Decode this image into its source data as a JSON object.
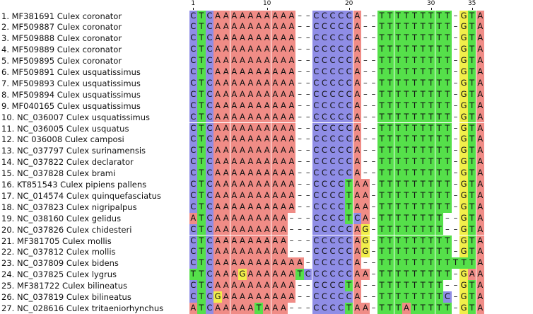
{
  "ruler_ticks": [
    {
      "pos": 1,
      "label": "1"
    },
    {
      "pos": 10,
      "label": "10"
    },
    {
      "pos": 20,
      "label": "20"
    },
    {
      "pos": 30,
      "label": "30"
    },
    {
      "pos": 35,
      "label": "35"
    }
  ],
  "nuc_colors": {
    "A": "#f08c86",
    "C": "#8f8de6",
    "T": "#55e04a",
    "G": "#f1ee4a"
  },
  "rows": [
    {
      "label": "1. MF381691 Culex coronator",
      "seq": "CTCAAAAAAAAAA--CCCCCA--TTTTTTTTT-GTA"
    },
    {
      "label": "2. MF509887 Culex coronator",
      "seq": "CTCAAAAAAAAAA--CCCCCA--TTTTTTTTT-GTA"
    },
    {
      "label": "3. MF509888 Culex coronator",
      "seq": "CTCAAAAAAAAAA--CCCCCA--TTTTTTTTT-GTA"
    },
    {
      "label": "4. MF509889 Culex coronator",
      "seq": "CTCAAAAAAAAAA--CCCCCA--TTTTTTTTT-GTA"
    },
    {
      "label": "5. MF509895 Culex coronator",
      "seq": "CTCAAAAAAAAAA--CCCCCA--TTTTTTTTT-GTA"
    },
    {
      "label": "6. MF509891 Culex usquatissimus",
      "seq": "CTCAAAAAAAAAA--CCCCCA--TTTTTTTTT-GTA"
    },
    {
      "label": "7. MF509893 Culex usquatissimus",
      "seq": "CTCAAAAAAAAAA--CCCCCA--TTTTTTTTT-GTA"
    },
    {
      "label": "8. MF509894 Culex usquatissimus",
      "seq": "CTCAAAAAAAAAA--CCCCCA--TTTTTTTTT-GTA"
    },
    {
      "label": "9. MF040165 Culex usquatissimus",
      "seq": "CTCAAAAAAAAAA--CCCCCA--TTTTTTTTT-GTA"
    },
    {
      "label": "10. NC_036007 Culex usquatissimus",
      "seq": "CTCAAAAAAAAAA--CCCCCA--TTTTTTTTT-GTA"
    },
    {
      "label": "11. NC_036005 Culex usquatus",
      "seq": "CTCAAAAAAAAAA--CCCCCA--TTTTTTTTT-GTA"
    },
    {
      "label": "12. NC 036008 Culex camposi",
      "seq": "CTCAAAAAAAAAA--CCCCCA--TTTTTTTTT-GTA"
    },
    {
      "label": "13. NC_037797 Culex surinamensis",
      "seq": "CTCAAAAAAAAAA--CCCCCA--TTTTTTTTT-GTA"
    },
    {
      "label": "14. NC_037822 Culex declarator",
      "seq": "CTCAAAAAAAAAA--CCCCCA--TTTTTTTTT-GTA"
    },
    {
      "label": "15. NC_037828 Culex brami",
      "seq": "CTCAAAAAAAAAA--CCCCCA--TTTTTTTTT-GTA"
    },
    {
      "label": "16. KT851543 Culex pipiens pallens",
      "seq": "CTCAAAAAAAAAA--CCCCTAA-TTTTTTTTT-GTA"
    },
    {
      "label": "17. NC_014574 Culex quinquefasciatus",
      "seq": "CTCAAAAAAAAAA--CCCCTAA-TTTTTTTTT-GTA"
    },
    {
      "label": "18. NC_037823 Culex nigripalpus",
      "seq": "CTCAAAAAAAAAA--CCCCTAA-TTTTTTTTT-GTA"
    },
    {
      "label": "19. NC_038160 Culex gelidus",
      "seq": "ATCAAAAAAAAA---CCCCTCA-TTTTTTTT--GTA"
    },
    {
      "label": "20. NC_037826 Culex chidesteri",
      "seq": "CTCAAAAAAAAA---CCCCCAG-TTTTTTTT--GTA"
    },
    {
      "label": "21. MF381705 Culex mollis",
      "seq": "CTCAAAAAAAAA---CCCCCAG-TTTTTTTTT-GTA"
    },
    {
      "label": "22. NC_037812 Culex mollis",
      "seq": "CTCAAAAAAAAA---CCCCCAG-TTTTTTTTT-GTA"
    },
    {
      "label": "23. NC_037809 Culex bidens",
      "seq": "CTCAAAAAAAAAAA-CCCCCA--TTTTTTTTTTTTA"
    },
    {
      "label": "24. NC_037825 Culex lygrus",
      "seq": "TTCAAAGAAAAAATCCCCCCAA-TTTTTTTTT-GAA"
    },
    {
      "label": "25. MF381722 Culex bilineatus",
      "seq": "CTCAAAAAAAAAA--CCCCTA--TTTTTTTT--GTA"
    },
    {
      "label": "26. NC_037819 Culex bilineatus",
      "seq": "CTCGAAAAAAAAA--CCCCCA--TTTTTTTTC-GTA"
    },
    {
      "label": "27. NC_028616 Culex tritaeniorhynchus",
      "seq": "ATCAAAAATAAA---CCCCTAA-TTTATTTTT-GTA"
    }
  ]
}
